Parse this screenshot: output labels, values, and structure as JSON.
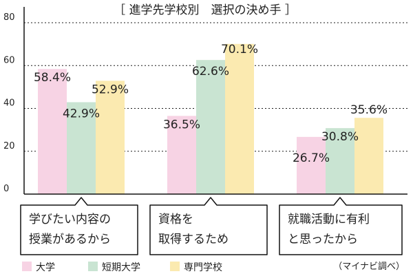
{
  "chart_data": {
    "type": "bar",
    "title": "［ 進学先学校別　選択の決め手 ］",
    "categories": [
      [
        "学びたい内容の",
        "授業があるから"
      ],
      [
        "資格を",
        "取得するため"
      ],
      [
        "就職活動に有利",
        "と思ったから"
      ]
    ],
    "series": [
      {
        "name": "大学",
        "color": "#f7d3e4",
        "values": [
          58.4,
          36.5,
          26.7
        ],
        "labels": [
          "58.4%",
          "36.5%",
          "26.7%"
        ]
      },
      {
        "name": "短期大学",
        "color": "#c9e4d2",
        "values": [
          42.9,
          62.6,
          30.8
        ],
        "labels": [
          "42.9%",
          "62.6%",
          "30.8%"
        ]
      },
      {
        "name": "専門学校",
        "color": "#fbeab0",
        "values": [
          52.9,
          70.1,
          35.6
        ],
        "labels": [
          "52.9%",
          "70.1%",
          "35.6%"
        ]
      }
    ],
    "yticks": [
      "0",
      "20",
      "40",
      "60",
      "80"
    ],
    "ylim": [
      0,
      80
    ],
    "grid": true,
    "legend_position": "bottom-left",
    "source": "（マイナビ調べ）",
    "gridline_color": "#1a1a1a"
  }
}
